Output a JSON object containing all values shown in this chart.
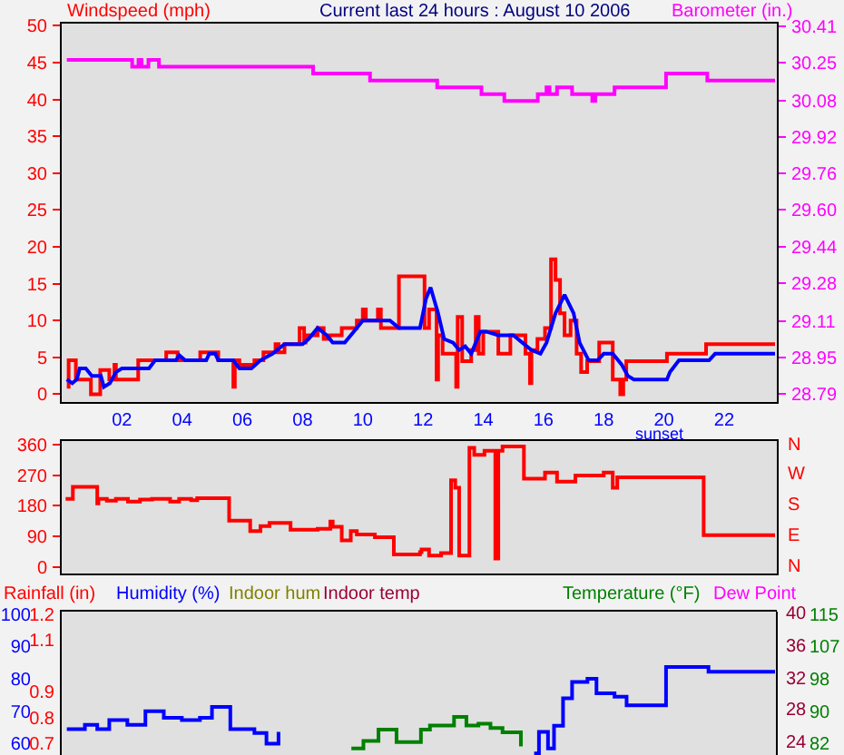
{
  "chart_data": [
    {
      "type": "line",
      "title": "Current last 24 hours : August 10 2006",
      "ylabel": "Windspeed (mph)",
      "y2label": "Barometer (in.)",
      "xlim": [
        0,
        23.75
      ],
      "xticks": [
        {
          "value": 2,
          "label": "02"
        },
        {
          "value": 4,
          "label": "04"
        },
        {
          "value": 6,
          "label": "06"
        },
        {
          "value": 8,
          "label": "08"
        },
        {
          "value": 10,
          "label": "10"
        },
        {
          "value": 12,
          "label": "12"
        },
        {
          "value": 14,
          "label": "14"
        },
        {
          "value": 16,
          "label": "16"
        },
        {
          "value": 18,
          "label": "18"
        },
        {
          "value": 20,
          "label": "20"
        },
        {
          "value": 22,
          "label": "22"
        }
      ],
      "ylim": [
        -1.1,
        50.3
      ],
      "yticks": [
        0,
        5,
        10,
        15,
        20,
        25,
        30,
        35,
        40,
        45,
        50
      ],
      "y2lim": [
        28.754,
        30.42
      ],
      "y2ticks": [
        28.79,
        28.95,
        29.11,
        29.28,
        29.44,
        {
          "value": 29.6,
          "label": "29.60"
        },
        29.76,
        29.92,
        30.08,
        30.25,
        30.41
      ],
      "annotations": [
        "sunset"
      ],
      "series": [
        {
          "type": "step",
          "color": "#ff0000",
          "x": [
            0.17,
            0.23,
            0.47,
            0.97,
            1.28,
            1.58,
            1.75,
            1.8,
            2.15,
            2.54,
            3.47,
            3.85,
            4.5,
            4.6,
            5.2,
            5.7,
            5.75,
            5.9,
            6.4,
            6.7,
            7.1,
            7.2,
            7.4,
            7.9,
            8.05,
            8.1,
            8.5,
            8.7,
            8.9,
            9.3,
            9.8,
            10.0,
            10.1,
            10.5,
            10.6,
            11.2,
            12.05,
            12.2,
            12.45,
            12.5,
            12.65,
            13.1,
            13.15,
            13.3,
            13.6,
            13.75,
            13.85,
            14.0,
            14.5,
            14.9,
            15.4,
            15.55,
            15.6,
            15.8,
            16.05,
            16.25,
            16.4,
            16.55,
            16.7,
            16.9,
            17.1,
            17.25,
            17.45,
            17.85,
            18.3,
            18.55,
            18.65,
            18.75,
            20.1,
            21.4,
            23.69
          ],
          "values": [
            1,
            4.6,
            2,
            0,
            3.3,
            2,
            4,
            2,
            2,
            4.6,
            5.7,
            4.6,
            4.6,
            5.7,
            4.6,
            1,
            4.6,
            4,
            4.6,
            5.7,
            6.8,
            5.7,
            6.8,
            9,
            7,
            8,
            9,
            7.5,
            8,
            9,
            10,
            11.5,
            10,
            11.5,
            9,
            16,
            9,
            11.5,
            2,
            8,
            5.5,
            1,
            10.5,
            4.5,
            6,
            10.5,
            5.5,
            8.5,
            5.5,
            8,
            5.5,
            1.5,
            6,
            7.5,
            9,
            18.3,
            15.5,
            11,
            8,
            10,
            5.5,
            3,
            4.5,
            7,
            2,
            0,
            2,
            4.5,
            5.5,
            6.8,
            6.8
          ]
        },
        {
          "type": "line",
          "color": "#0000ff",
          "x": [
            0.17,
            0.35,
            0.5,
            0.6,
            0.8,
            1.0,
            1.3,
            1.4,
            1.6,
            1.8,
            2.0,
            2.9,
            3.1,
            3.8,
            3.9,
            4.1,
            4.8,
            4.9,
            5.1,
            5.2,
            5.7,
            5.9,
            6.3,
            6.6,
            7.0,
            7.4,
            8.0,
            8.2,
            8.5,
            8.8,
            9.0,
            9.4,
            9.7,
            10.0,
            10.6,
            10.9,
            11.2,
            11.9,
            12.1,
            12.25,
            12.5,
            12.7,
            13.0,
            13.2,
            13.4,
            13.6,
            13.9,
            14.1,
            14.5,
            15.0,
            15.3,
            15.6,
            15.9,
            16.1,
            16.4,
            16.7,
            17.0,
            17.2,
            17.5,
            17.8,
            18.0,
            18.3,
            18.6,
            18.8,
            19.0,
            20.1,
            20.2,
            20.5,
            21.5,
            21.7,
            23.69
          ],
          "values": [
            2,
            1.5,
            2,
            3.5,
            3.5,
            2.5,
            2.5,
            1,
            1.5,
            3,
            3.5,
            3.5,
            4.6,
            4.6,
            5.3,
            4.6,
            4.6,
            5.5,
            5.5,
            4.6,
            4.6,
            3.5,
            3.5,
            4.6,
            5.5,
            6.8,
            6.8,
            7.5,
            9,
            8,
            7,
            7,
            8.5,
            10,
            10,
            10,
            9,
            9,
            13,
            14.5,
            11,
            7.5,
            7,
            6,
            6.5,
            5.5,
            8.5,
            8.5,
            8,
            8,
            7,
            6,
            5.5,
            7,
            11,
            13.5,
            11,
            7,
            4.6,
            4.6,
            5.5,
            5.5,
            4,
            2.5,
            2,
            2,
            3,
            4.6,
            4.6,
            5.5,
            5.5
          ]
        },
        {
          "type": "step",
          "axis": "y2",
          "color": "#ff00ff",
          "x": [
            0.17,
            2.34,
            2.55,
            2.65,
            2.88,
            3.23,
            8.35,
            10.24,
            12.47,
            13.94,
            14.7,
            15.81,
            16.1,
            16.2,
            16.45,
            16.95,
            17.62,
            17.72,
            18.36,
            20.07,
            21.44,
            23.69
          ],
          "values": [
            30.26,
            30.23,
            30.26,
            30.23,
            30.26,
            30.23,
            30.2,
            30.17,
            30.14,
            30.11,
            30.08,
            30.11,
            30.14,
            30.11,
            30.14,
            30.11,
            30.08,
            30.11,
            30.14,
            30.2,
            30.17,
            30.17
          ]
        }
      ]
    },
    {
      "type": "step",
      "tick_labels": "y",
      "xlim": [
        0,
        23.75
      ],
      "ylim": [
        -20,
        371
      ],
      "yticks": [
        0,
        90,
        180,
        270,
        360
      ],
      "annotations": [
        "N",
        "E",
        "S",
        "W",
        "N"
      ],
      "series": [
        {
          "color": "#ff0000",
          "x": [
            0.13,
            0.37,
            1.18,
            1.22,
            1.5,
            1.8,
            2.2,
            2.6,
            3.0,
            3.6,
            3.9,
            4.3,
            4.5,
            5.56,
            6.26,
            6.6,
            6.9,
            7.6,
            8.5,
            8.92,
            9.0,
            9.3,
            9.6,
            9.8,
            10.4,
            11.03,
            11.9,
            11.95,
            12.2,
            12.6,
            12.93,
            13.07,
            13.2,
            13.54,
            13.7,
            14.04,
            14.4,
            14.5,
            14.64,
            15.35,
            16.05,
            16.45,
            17.06,
            18.0,
            18.3,
            18.45,
            21.32,
            23.69
          ],
          "values": [
            200,
            236,
            187,
            200,
            195,
            200,
            192,
            198,
            200,
            192,
            200,
            196,
            202,
            136,
            105,
            120,
            129,
            109,
            112,
            133,
            118,
            78,
            105,
            95,
            87,
            36,
            43,
            51,
            33,
            40,
            255,
            233,
            33,
            351,
            330,
            342,
            24,
            342,
            355,
            260,
            278,
            251,
            269,
            278,
            233,
            264,
            93,
            93
          ]
        }
      ]
    },
    {
      "type": "line",
      "tick_labels": "y",
      "ylabel": "Humidity (%)",
      "y2label": "Temperature (°F)",
      "y3label": "Rainfall (in)",
      "annotations": [
        "Indoor hum",
        "Indoor temp",
        "Dew Point",
        "40",
        "36",
        "32",
        "28",
        "24"
      ],
      "xlim": [
        0,
        23.75
      ],
      "ylim": [
        56.5,
        100.7
      ],
      "yticks": [
        60,
        70,
        80,
        90,
        100
      ],
      "y2lim": [
        79.11,
        115.58
      ],
      "y2ticks": [
        82,
        {
          "value": 90.25,
          "label": "90"
        },
        {
          "value": 98.5,
          "label": "98"
        },
        {
          "value": 106.75,
          "label": "107"
        },
        115
      ],
      "y3lim": [
        0.656,
        1.209
      ],
      "y3ticks": [
        0.7,
        0.8,
        0.9,
        1.1,
        1.2
      ],
      "series": [
        {
          "type": "step",
          "color": "#0000ff",
          "x": [
            0.17,
            0.77,
            1.18,
            1.58,
            2.18,
            2.78,
            3.39,
            3.99,
            4.59,
            4.99,
            5.6,
            6.4,
            6.8,
            7.2,
            7.3,
            15.69,
            15.85,
            16.15,
            16.35,
            16.65,
            16.95,
            17.46,
            17.76,
            18.36,
            18.76,
            20.07,
            21.48,
            23.69
          ],
          "values": [
            64.5,
            65.8,
            64.5,
            67.3,
            65.8,
            70,
            68,
            67.3,
            68,
            71.3,
            64.5,
            63.3,
            60,
            63.6,
            null,
            57,
            63.6,
            58.5,
            65.5,
            74,
            79,
            80,
            75.5,
            74.5,
            71.8,
            83.6,
            82.2,
            82.2
          ]
        },
        {
          "type": "step",
          "axis": "y2",
          "color": "#008000",
          "x": [
            9.62,
            10.02,
            10.52,
            11.12,
            11.93,
            12.23,
            13.03,
            13.44,
            13.84,
            14.24,
            14.64,
            15.25
          ],
          "values": [
            80.8,
            82.7,
            85.6,
            82.4,
            85.6,
            86.6,
            88.8,
            86.6,
            87.1,
            86,
            84.9,
            81.3
          ]
        }
      ]
    }
  ]
}
